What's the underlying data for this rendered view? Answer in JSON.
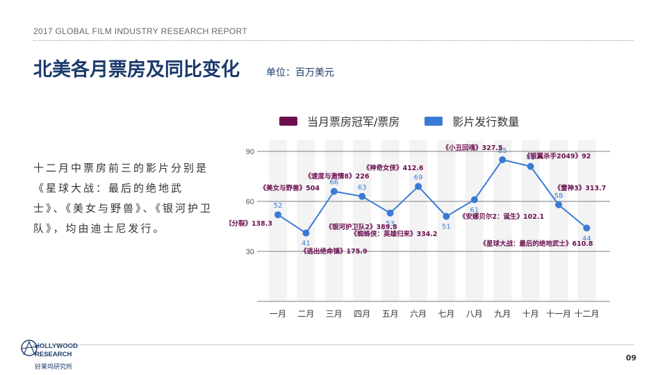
{
  "header": {
    "report_title": "2017 GLOBAL FILM INDUSTRY RESEARCH REPORT"
  },
  "title": {
    "main": "北美各月票房及同比变化",
    "unit": "单位：百万美元"
  },
  "body_text": "十二月中票房前三的影片分别是《星球大战：最后的绝地武士》、《美女与野兽》、《银河护卫队》，均由迪士尼发行。",
  "legend": [
    {
      "label": "当月票房冠军/票房",
      "color": "#6b0f4f"
    },
    {
      "label": "影片发行数量",
      "color": "#3a7bd5"
    }
  ],
  "chart_data": {
    "type": "line",
    "categories": [
      "一月",
      "二月",
      "三月",
      "四月",
      "五月",
      "六月",
      "七月",
      "八月",
      "九月",
      "十月",
      "十一月",
      "十二月"
    ],
    "series": [
      {
        "name": "影片发行数量",
        "values": [
          52,
          41,
          66,
          63,
          53,
          69,
          51,
          61,
          85,
          81,
          58,
          44
        ]
      }
    ],
    "annotations": [
      "《分裂》138.3",
      "《逃出绝命镇》175.9",
      "《美女与野兽》504",
      "《速度与激情8》226",
      "《银河护卫队2》389.8",
      "《神奇女侠》412.6",
      "《蜘蛛侠：英雄归来》334.2",
      "《安娜贝尔2：诞生》102.1",
      "《小丑回魂》327.5",
      "《银翼杀手2049》92",
      "《雷神3》313.7",
      "《星球大战：最后的绝地武士》610.8"
    ],
    "yticks": [
      30,
      60,
      90
    ],
    "ylim": [
      0,
      90
    ],
    "grid": true,
    "line_color": "#3a7bd5",
    "annotation_color": "#6b0f4f"
  },
  "footer": {
    "logo_line1": "HOLLYWOOD",
    "logo_line2": "RESEARCH",
    "logo_cn": "好莱坞研究所",
    "page_number": "09"
  }
}
